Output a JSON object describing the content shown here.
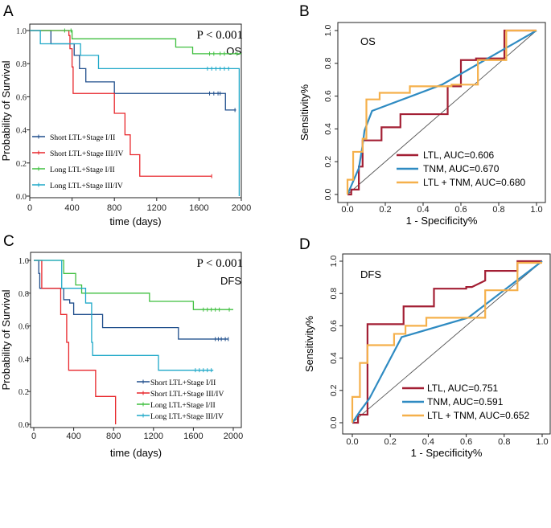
{
  "chart_data": [
    {
      "panel": "A",
      "type": "line",
      "subtype": "kaplan-meier",
      "title": "",
      "annotation": "P < 0.001",
      "label": "OS",
      "xlabel": "time (days)",
      "ylabel": "Probability of Survival",
      "xlim": [
        0,
        2000
      ],
      "ylim": [
        0,
        1.0
      ],
      "xticks": [
        "0",
        "400",
        "800",
        "1200",
        "1600",
        "2000"
      ],
      "yticks": [
        "0.0",
        "0.2",
        "0.4",
        "0.6",
        "0.8",
        "1.0"
      ],
      "legend_position": "bottom-left",
      "series": [
        {
          "name": "Short LTL+Stage I/II",
          "color": "#1f4e8c",
          "points": [
            [
              0,
              1.0
            ],
            [
              200,
              1.0
            ],
            [
              200,
              0.92
            ],
            [
              420,
              0.92
            ],
            [
              420,
              0.85
            ],
            [
              470,
              0.85
            ],
            [
              470,
              0.77
            ],
            [
              530,
              0.77
            ],
            [
              530,
              0.69
            ],
            [
              800,
              0.69
            ],
            [
              800,
              0.62
            ],
            [
              1850,
              0.62
            ],
            [
              1850,
              0.52
            ],
            [
              1950,
              0.52
            ]
          ],
          "censor": [
            1700,
            1740,
            1780,
            1800,
            1940
          ]
        },
        {
          "name": "Short LTL+Stage III/IV",
          "color": "#e8262b",
          "points": [
            [
              0,
              1.0
            ],
            [
              370,
              1.0
            ],
            [
              370,
              0.97
            ],
            [
              380,
              0.97
            ],
            [
              380,
              0.89
            ],
            [
              400,
              0.89
            ],
            [
              400,
              0.78
            ],
            [
              410,
              0.78
            ],
            [
              410,
              0.62
            ],
            [
              800,
              0.62
            ],
            [
              800,
              0.5
            ],
            [
              900,
              0.5
            ],
            [
              900,
              0.37
            ],
            [
              950,
              0.37
            ],
            [
              950,
              0.25
            ],
            [
              1040,
              0.25
            ],
            [
              1040,
              0.12
            ],
            [
              1720,
              0.12
            ]
          ],
          "censor": [
            1720
          ]
        },
        {
          "name": "Long LTL+Stage I/II",
          "color": "#3fbf3f",
          "points": [
            [
              0,
              1.0
            ],
            [
              400,
              1.0
            ],
            [
              400,
              0.95
            ],
            [
              1380,
              0.95
            ],
            [
              1380,
              0.9
            ],
            [
              1540,
              0.9
            ],
            [
              1540,
              0.86
            ],
            [
              2000,
              0.86
            ]
          ],
          "censor": [
            330,
            390,
            1700,
            1740,
            1800,
            1840,
            1960
          ]
        },
        {
          "name": "Long LTL+Stage III/IV",
          "color": "#1ea8c8",
          "points": [
            [
              0,
              1.0
            ],
            [
              100,
              1.0
            ],
            [
              100,
              0.92
            ],
            [
              480,
              0.92
            ],
            [
              480,
              0.85
            ],
            [
              650,
              0.85
            ],
            [
              650,
              0.77
            ],
            [
              1980,
              0.77
            ],
            [
              1980,
              0.0
            ]
          ],
          "censor": [
            1680,
            1720,
            1760,
            1800,
            1840,
            1880
          ]
        }
      ]
    },
    {
      "panel": "B",
      "type": "line",
      "subtype": "roc",
      "label": "OS",
      "xlabel": "1 - Specificity%",
      "ylabel": "Sensitivity%",
      "xlim": [
        0,
        1
      ],
      "ylim": [
        0,
        1
      ],
      "xticks": [
        "0.0",
        "0.2",
        "0.4",
        "0.6",
        "0.8",
        "1.0"
      ],
      "yticks": [
        "0.0",
        "0.2",
        "0.4",
        "0.6",
        "0.8",
        "1.0"
      ],
      "legend_position": "bottom-right",
      "series": [
        {
          "name": "LTL, AUC=0.606",
          "color": "#a31f34",
          "points": [
            [
              0,
              0
            ],
            [
              0.02,
              0
            ],
            [
              0.02,
              0.03
            ],
            [
              0.06,
              0.03
            ],
            [
              0.06,
              0.17
            ],
            [
              0.08,
              0.17
            ],
            [
              0.08,
              0.33
            ],
            [
              0.18,
              0.33
            ],
            [
              0.18,
              0.41
            ],
            [
              0.28,
              0.41
            ],
            [
              0.28,
              0.49
            ],
            [
              0.53,
              0.49
            ],
            [
              0.53,
              0.66
            ],
            [
              0.53,
              0.66
            ],
            [
              0.6,
              0.66
            ],
            [
              0.6,
              0.82
            ],
            [
              0.68,
              0.82
            ],
            [
              0.68,
              0.83
            ],
            [
              0.83,
              0.83
            ],
            [
              0.83,
              1.0
            ],
            [
              1.0,
              1.0
            ]
          ]
        },
        {
          "name": "TNM, AUC=0.670",
          "color": "#2f8bc2",
          "points": [
            [
              0,
              0
            ],
            [
              0.03,
              0.08
            ],
            [
              0.06,
              0.16
            ],
            [
              0.08,
              0.3
            ],
            [
              0.09,
              0.39
            ],
            [
              0.13,
              0.51
            ],
            [
              0.5,
              0.67
            ],
            [
              1.0,
              1.0
            ]
          ]
        },
        {
          "name": "LTL + TNM, AUC=0.680",
          "color": "#f5b04b",
          "points": [
            [
              0,
              0
            ],
            [
              0,
              0.09
            ],
            [
              0.03,
              0.09
            ],
            [
              0.03,
              0.26
            ],
            [
              0.08,
              0.26
            ],
            [
              0.08,
              0.34
            ],
            [
              0.1,
              0.34
            ],
            [
              0.1,
              0.58
            ],
            [
              0.17,
              0.58
            ],
            [
              0.17,
              0.62
            ],
            [
              0.33,
              0.62
            ],
            [
              0.33,
              0.66
            ],
            [
              0.55,
              0.66
            ],
            [
              0.55,
              0.67
            ],
            [
              0.69,
              0.67
            ],
            [
              0.69,
              0.82
            ],
            [
              0.84,
              0.82
            ],
            [
              0.84,
              1.0
            ],
            [
              1.0,
              1.0
            ]
          ]
        }
      ]
    },
    {
      "panel": "C",
      "type": "line",
      "subtype": "kaplan-meier",
      "annotation": "P < 0.001",
      "label": "DFS",
      "xlabel": "time (days)",
      "ylabel": "Probability of Survival",
      "xlim": [
        0,
        2000
      ],
      "ylim": [
        0,
        1.0
      ],
      "xticks": [
        "0",
        "400",
        "800",
        "1200",
        "1600",
        "2000"
      ],
      "yticks": [
        "0.0",
        "0.2",
        "0.4",
        "0.6",
        "0.8",
        "1.0"
      ],
      "legend_position": "bottom-right",
      "series": [
        {
          "name": "Short LTL+Stage I/II",
          "color": "#1f4e8c",
          "points": [
            [
              0,
              1.0
            ],
            [
              50,
              1.0
            ],
            [
              50,
              0.92
            ],
            [
              60,
              0.92
            ],
            [
              60,
              0.83
            ],
            [
              300,
              0.83
            ],
            [
              300,
              0.76
            ],
            [
              360,
              0.76
            ],
            [
              360,
              0.74
            ],
            [
              400,
              0.74
            ],
            [
              400,
              0.67
            ],
            [
              690,
              0.67
            ],
            [
              690,
              0.59
            ],
            [
              1450,
              0.59
            ],
            [
              1450,
              0.52
            ],
            [
              1950,
              0.52
            ]
          ],
          "censor": [
            1820,
            1850,
            1880,
            1920,
            1950
          ]
        },
        {
          "name": "Short LTL+Stage III/IV",
          "color": "#e8262b",
          "points": [
            [
              0,
              1.0
            ],
            [
              80,
              1.0
            ],
            [
              80,
              0.83
            ],
            [
              270,
              0.83
            ],
            [
              270,
              0.67
            ],
            [
              330,
              0.67
            ],
            [
              330,
              0.5
            ],
            [
              350,
              0.5
            ],
            [
              350,
              0.33
            ],
            [
              620,
              0.33
            ],
            [
              620,
              0.17
            ],
            [
              820,
              0.17
            ],
            [
              820,
              0.0
            ]
          ],
          "censor": []
        },
        {
          "name": "Long LTL+Stage I/II",
          "color": "#3fbf3f",
          "points": [
            [
              0,
              1.0
            ],
            [
              300,
              1.0
            ],
            [
              300,
              0.92
            ],
            [
              420,
              0.92
            ],
            [
              420,
              0.85
            ],
            [
              480,
              0.85
            ],
            [
              480,
              0.8
            ],
            [
              1160,
              0.8
            ],
            [
              1160,
              0.75
            ],
            [
              1600,
              0.75
            ],
            [
              1600,
              0.7
            ],
            [
              2000,
              0.7
            ]
          ],
          "censor": [
            1700,
            1740,
            1780,
            1820,
            1860,
            1960
          ]
        },
        {
          "name": "Long LTL+Stage III/IV",
          "color": "#1ea8c8",
          "points": [
            [
              0,
              1.0
            ],
            [
              280,
              1.0
            ],
            [
              280,
              0.83
            ],
            [
              520,
              0.83
            ],
            [
              520,
              0.74
            ],
            [
              580,
              0.74
            ],
            [
              580,
              0.5
            ],
            [
              590,
              0.5
            ],
            [
              590,
              0.42
            ],
            [
              1250,
              0.42
            ],
            [
              1250,
              0.33
            ],
            [
              1800,
              0.33
            ]
          ],
          "censor": [
            1620,
            1660,
            1700,
            1740,
            1780
          ]
        }
      ]
    },
    {
      "panel": "D",
      "type": "line",
      "subtype": "roc",
      "label": "DFS",
      "xlabel": "1 - Specificity%",
      "ylabel": "Sensitivity%",
      "xlim": [
        0,
        1
      ],
      "ylim": [
        0,
        1
      ],
      "xticks": [
        "0.0",
        "0.2",
        "0.4",
        "0.6",
        "0.8",
        "1.0"
      ],
      "yticks": [
        "0.0",
        "0.2",
        "0.4",
        "0.6",
        "0.8",
        "1.0"
      ],
      "legend_position": "bottom-right",
      "series": [
        {
          "name": "LTL, AUC=0.751",
          "color": "#a31f34",
          "points": [
            [
              0,
              0
            ],
            [
              0.03,
              0
            ],
            [
              0.03,
              0.05
            ],
            [
              0.08,
              0.05
            ],
            [
              0.08,
              0.61
            ],
            [
              0.27,
              0.61
            ],
            [
              0.27,
              0.72
            ],
            [
              0.43,
              0.72
            ],
            [
              0.43,
              0.83
            ],
            [
              0.6,
              0.83
            ],
            [
              0.6,
              0.84
            ],
            [
              0.63,
              0.84
            ],
            [
              0.7,
              0.88
            ],
            [
              0.7,
              0.94
            ],
            [
              0.87,
              0.94
            ],
            [
              0.87,
              1.0
            ],
            [
              1.0,
              1.0
            ]
          ]
        },
        {
          "name": "TNM, AUC=0.591",
          "color": "#2f8bc2",
          "points": [
            [
              0,
              0
            ],
            [
              0.04,
              0.07
            ],
            [
              0.09,
              0.15
            ],
            [
              0.26,
              0.53
            ],
            [
              0.61,
              0.65
            ],
            [
              1.0,
              1.0
            ]
          ]
        },
        {
          "name": "LTL + TNM, AUC=0.652",
          "color": "#f5b04b",
          "points": [
            [
              0,
              0
            ],
            [
              0,
              0.16
            ],
            [
              0.04,
              0.16
            ],
            [
              0.04,
              0.37
            ],
            [
              0.08,
              0.37
            ],
            [
              0.08,
              0.48
            ],
            [
              0.22,
              0.48
            ],
            [
              0.22,
              0.55
            ],
            [
              0.28,
              0.55
            ],
            [
              0.28,
              0.6
            ],
            [
              0.39,
              0.6
            ],
            [
              0.39,
              0.65
            ],
            [
              0.7,
              0.65
            ],
            [
              0.7,
              0.82
            ],
            [
              0.87,
              0.82
            ],
            [
              0.87,
              0.99
            ],
            [
              1.0,
              0.99
            ]
          ]
        }
      ]
    }
  ],
  "panel_letters": [
    "A",
    "B",
    "C",
    "D"
  ]
}
